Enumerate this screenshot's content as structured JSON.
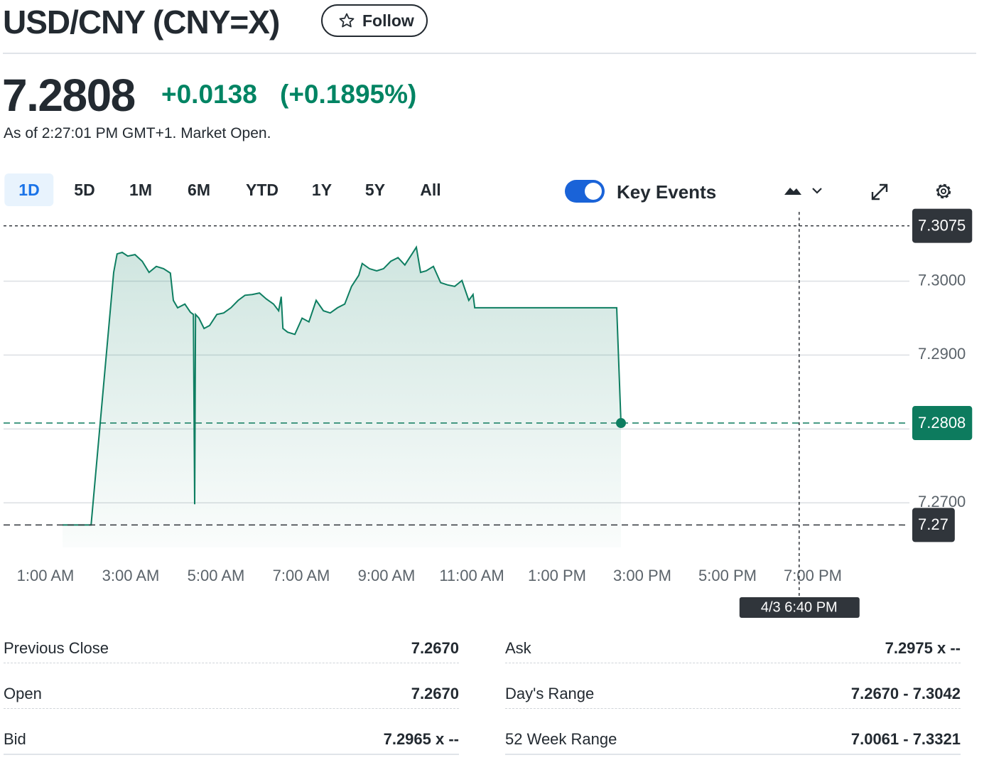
{
  "header": {
    "title": "USD/CNY (CNY=X)",
    "follow": "Follow",
    "price": "7.2808",
    "change": "+0.0138",
    "change_percent": "(+0.1895%)",
    "as_of": "As of 2:27:01 PM GMT+1. Market Open."
  },
  "tabs": [
    "1D",
    "5D",
    "1M",
    "6M",
    "YTD",
    "1Y",
    "5Y",
    "All"
  ],
  "active_tab": 0,
  "key_events": {
    "label": "Key Events",
    "enabled": true
  },
  "chart_data": {
    "type": "area",
    "x": [
      1.4,
      2.07,
      2.6,
      2.68,
      2.8,
      2.93,
      3.1,
      3.27,
      3.43,
      3.6,
      3.77,
      3.93,
      4.0,
      4.1,
      4.27,
      4.4,
      4.47,
      4.5,
      4.52,
      4.6,
      4.72,
      4.85,
      5.02,
      5.18,
      5.35,
      5.52,
      5.68,
      5.85,
      6.02,
      6.18,
      6.35,
      6.47,
      6.53,
      6.57,
      6.68,
      6.85,
      7.02,
      7.18,
      7.35,
      7.52,
      7.68,
      7.85,
      8.02,
      8.18,
      8.35,
      8.43,
      8.6,
      8.77,
      8.93,
      9.1,
      9.27,
      9.43,
      9.6,
      9.7,
      9.8,
      9.93,
      10.1,
      10.27,
      10.43,
      10.6,
      10.77,
      10.87,
      10.93,
      11.03,
      11.07,
      14.4,
      14.5
    ],
    "series": [
      {
        "color": "#0e7e61",
        "values": [
          7.267,
          7.267,
          7.3012,
          7.3037,
          7.3039,
          7.3034,
          7.3036,
          7.3027,
          7.3012,
          7.302,
          7.3017,
          7.3011,
          7.2974,
          7.2964,
          7.2969,
          7.2958,
          7.2955,
          7.2698,
          7.2955,
          7.295,
          7.2936,
          7.294,
          7.2955,
          7.2957,
          7.2964,
          7.2974,
          7.2981,
          7.2982,
          7.2984,
          7.2976,
          7.2969,
          7.296,
          7.2979,
          7.2936,
          7.2931,
          7.2928,
          7.295,
          7.2945,
          7.2974,
          7.296,
          7.2957,
          7.2964,
          7.2969,
          7.2993,
          7.3008,
          7.3024,
          7.3017,
          7.3014,
          7.3017,
          7.3027,
          7.3032,
          7.3022,
          7.3037,
          7.3046,
          7.3012,
          7.3014,
          7.302,
          7.2998,
          7.2995,
          7.2993,
          7.3001,
          7.2984,
          7.2974,
          7.2982,
          7.2964,
          7.2964,
          7.2808
        ]
      }
    ],
    "xlim": [
      0,
      21.25
    ],
    "xticks": [
      {
        "value": 1,
        "label": "1:00 AM"
      },
      {
        "value": 3,
        "label": "3:00 AM"
      },
      {
        "value": 5,
        "label": "5:00 AM"
      },
      {
        "value": 7,
        "label": "7:00 AM"
      },
      {
        "value": 9,
        "label": "9:00 AM"
      },
      {
        "value": 11,
        "label": "11:00 AM"
      },
      {
        "value": 13,
        "label": "1:00 PM"
      },
      {
        "value": 15,
        "label": "3:00 PM"
      },
      {
        "value": 17,
        "label": "5:00 PM"
      },
      {
        "value": 19,
        "label": "7:00 PM"
      }
    ],
    "ylim": [
      7.263,
      7.309
    ],
    "yticks": [
      {
        "value": 7.27,
        "label": "7.2700"
      },
      {
        "value": 7.28,
        "label": "7.2800"
      },
      {
        "value": 7.29,
        "label": "7.2900"
      },
      {
        "value": 7.3,
        "label": "7.3000"
      }
    ],
    "grid": true,
    "reference_lines": [
      {
        "value": 7.2808,
        "label": "7.2808",
        "color": "#0d7b5e"
      },
      {
        "value": 7.267,
        "label": "7.27",
        "color": "#30353b"
      }
    ],
    "crosshair": {
      "x": 18.68,
      "x_label": "4/3 6:40 PM",
      "y": 7.3075,
      "y_label": "7.3075",
      "color": "#30353b"
    }
  },
  "stats": [
    {
      "label": "Previous Close",
      "value": "7.2670"
    },
    {
      "label": "Open",
      "value": "7.2670"
    },
    {
      "label": "Bid",
      "value": "7.2965 x --"
    },
    {
      "label": "Ask",
      "value": "7.2975 x --"
    },
    {
      "label": "Day's Range",
      "value": "7.2670 - 7.3042"
    },
    {
      "label": "52 Week Range",
      "value": "7.0061 - 7.3321"
    }
  ]
}
